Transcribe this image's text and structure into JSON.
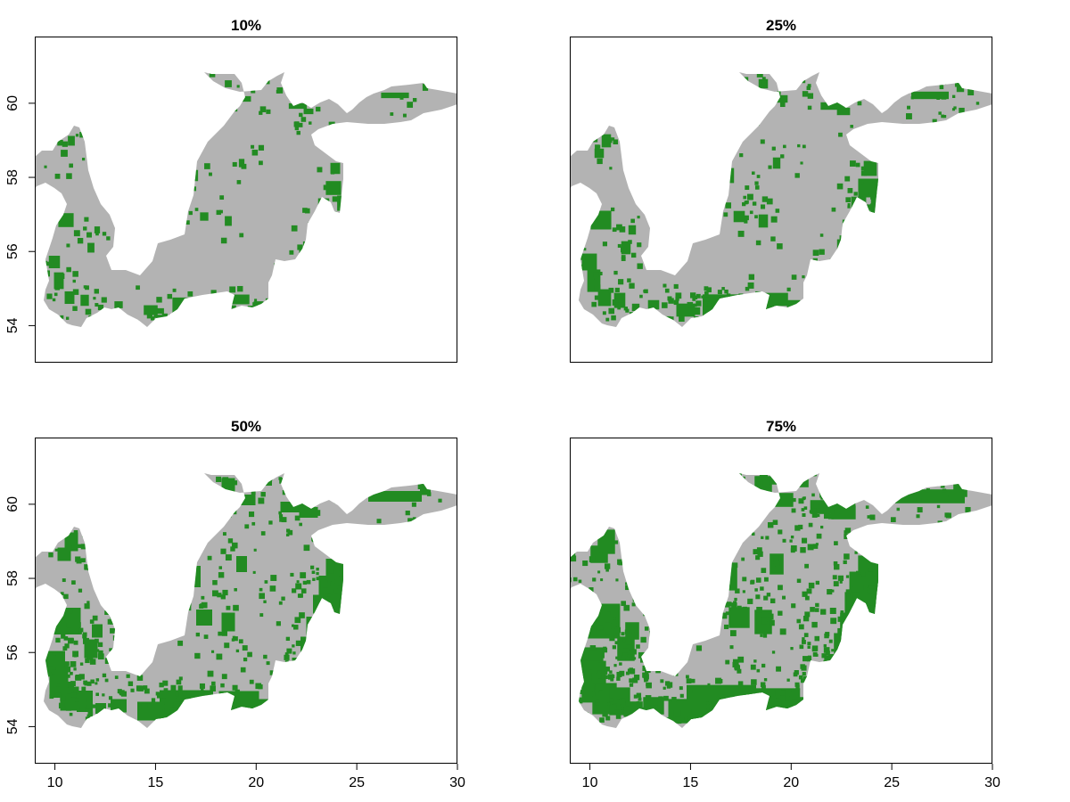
{
  "panels": [
    {
      "title": "10%",
      "show_x_axis": false,
      "show_y_axis": true,
      "green_level": 0.1
    },
    {
      "title": "25%",
      "show_x_axis": false,
      "show_y_axis": false,
      "green_level": 0.25
    },
    {
      "title": "50%",
      "show_x_axis": true,
      "show_y_axis": true,
      "green_level": 0.5
    },
    {
      "title": "75%",
      "show_x_axis": true,
      "show_y_axis": false,
      "green_level": 0.75
    }
  ],
  "axes": {
    "x_ticks": [
      "10",
      "15",
      "20",
      "25",
      "30"
    ],
    "y_ticks": [
      "54",
      "56",
      "58",
      "60"
    ],
    "x_range": [
      9,
      30
    ],
    "y_range": [
      53,
      61.8
    ]
  },
  "colors": {
    "sea": "#b3b3b3",
    "habitat": "#228b22",
    "background": "#ffffff",
    "frame": "#000000"
  }
}
